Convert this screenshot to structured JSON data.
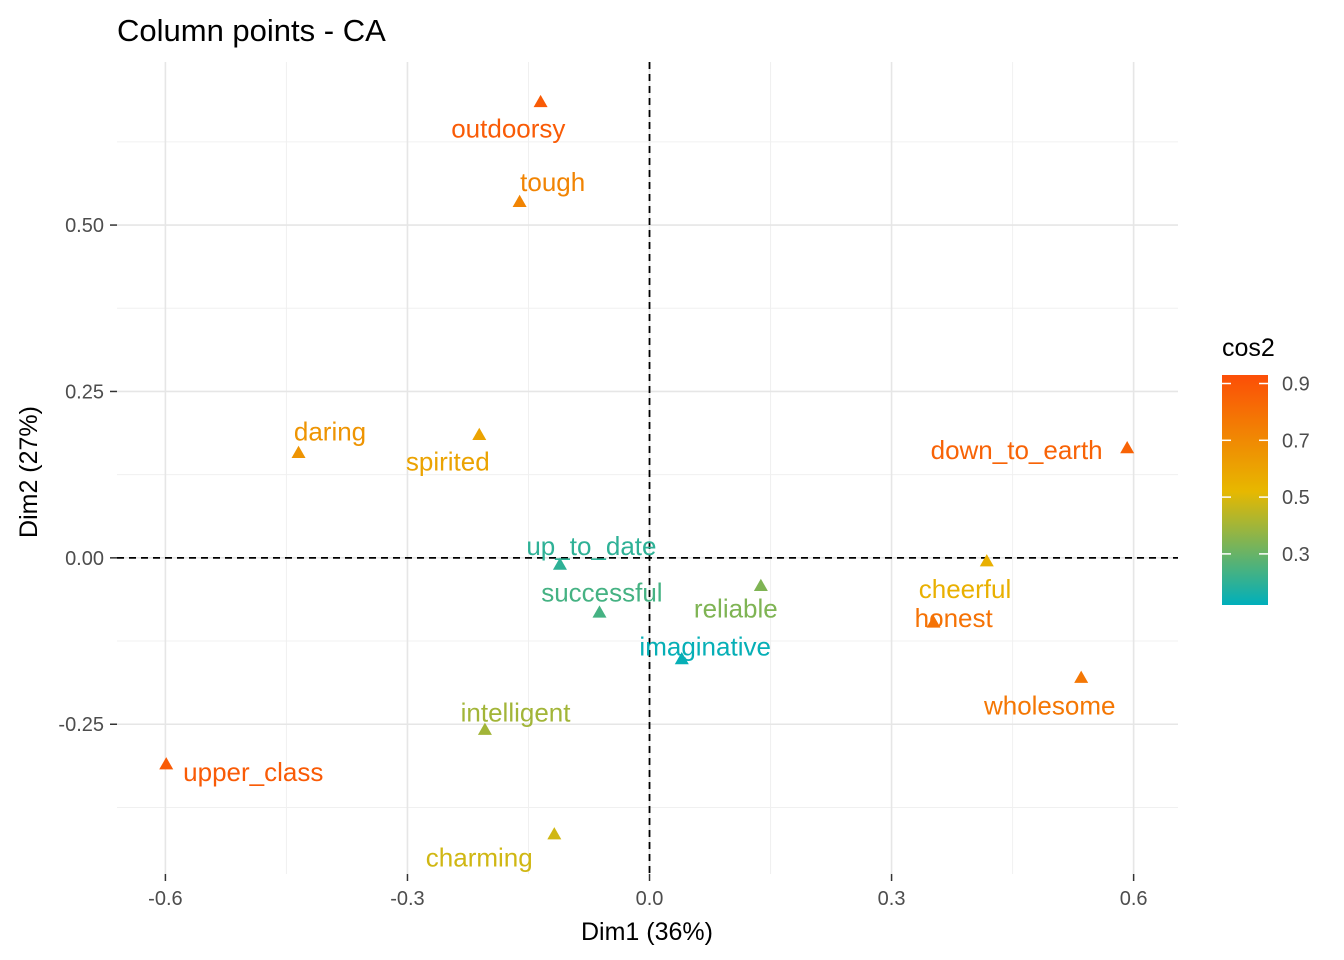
{
  "chart_data": {
    "type": "scatter",
    "title": "Column points - CA",
    "xlabel": "Dim1 (36%)",
    "ylabel": "Dim2 (27%)",
    "xlim": [
      -0.66,
      0.655
    ],
    "ylim": [
      -0.475,
      0.745
    ],
    "x_ticks": [
      -0.6,
      -0.3,
      0.0,
      0.3,
      0.6
    ],
    "x_tick_labels": [
      "-0.6",
      "-0.3",
      "0.0",
      "0.3",
      "0.6"
    ],
    "y_ticks": [
      -0.25,
      0.0,
      0.25,
      0.5
    ],
    "y_tick_labels": [
      "-0.25",
      "0.00",
      "0.25",
      "0.50"
    ],
    "grid": true,
    "reference_lines": {
      "x": 0,
      "y": 0,
      "style": "dashed"
    },
    "marker": "triangle",
    "legend": {
      "title": "cos2",
      "position": "right",
      "ticks": [
        0.9,
        0.7,
        0.5,
        0.3
      ],
      "tick_labels": [
        "0.9",
        "0.7",
        "0.5",
        "0.3"
      ],
      "range": [
        0.12,
        0.93
      ],
      "gradient_stops": [
        {
          "value": 0.12,
          "color": "#00AFBB"
        },
        {
          "value": 0.52,
          "color": "#E7B800"
        },
        {
          "value": 0.93,
          "color": "#FC4E07"
        }
      ]
    },
    "points": [
      {
        "label": "outdoorsy",
        "x": -0.135,
        "y": 0.685,
        "cos2": 0.88,
        "label_x": -0.175,
        "label_y": 0.645,
        "anchor": "middle"
      },
      {
        "label": "tough",
        "x": -0.161,
        "y": 0.535,
        "cos2": 0.72,
        "label_x": -0.12,
        "label_y": 0.565,
        "anchor": "middle"
      },
      {
        "label": "daring",
        "x": -0.435,
        "y": 0.158,
        "cos2": 0.66,
        "label_x": -0.396,
        "label_y": 0.19,
        "anchor": "middle"
      },
      {
        "label": "spirited",
        "x": -0.211,
        "y": 0.185,
        "cos2": 0.6,
        "label_x": -0.25,
        "label_y": 0.145,
        "anchor": "middle"
      },
      {
        "label": "down_to_earth",
        "x": 0.592,
        "y": 0.165,
        "cos2": 0.85,
        "label_x": 0.455,
        "label_y": 0.162,
        "anchor": "middle"
      },
      {
        "label": "up_to_date",
        "x": -0.111,
        "y": -0.01,
        "cos2": 0.2,
        "label_x": -0.072,
        "label_y": 0.018,
        "anchor": "middle"
      },
      {
        "label": "successful",
        "x": -0.062,
        "y": -0.082,
        "cos2": 0.24,
        "label_x": -0.059,
        "label_y": -0.052,
        "anchor": "middle"
      },
      {
        "label": "reliable",
        "x": 0.138,
        "y": -0.042,
        "cos2": 0.34,
        "label_x": 0.107,
        "label_y": -0.076,
        "anchor": "middle"
      },
      {
        "label": "imaginative",
        "x": 0.04,
        "y": -0.152,
        "cos2": 0.13,
        "label_x": 0.069,
        "label_y": -0.133,
        "anchor": "middle"
      },
      {
        "label": "cheerful",
        "x": 0.418,
        "y": -0.005,
        "cos2": 0.55,
        "label_x": 0.391,
        "label_y": -0.047,
        "anchor": "middle"
      },
      {
        "label": "honest",
        "x": 0.352,
        "y": -0.097,
        "cos2": 0.79,
        "label_x": 0.377,
        "label_y": -0.09,
        "anchor": "middle"
      },
      {
        "label": "wholesome",
        "x": 0.535,
        "y": -0.18,
        "cos2": 0.77,
        "label_x": 0.496,
        "label_y": -0.222,
        "anchor": "middle"
      },
      {
        "label": "intelligent",
        "x": -0.204,
        "y": -0.258,
        "cos2": 0.4,
        "label_x": -0.166,
        "label_y": -0.232,
        "anchor": "middle"
      },
      {
        "label": "upper_class",
        "x": -0.599,
        "y": -0.31,
        "cos2": 0.88,
        "label_x": -0.578,
        "label_y": -0.322,
        "anchor": "start"
      },
      {
        "label": "charming",
        "x": -0.118,
        "y": -0.415,
        "cos2": 0.48,
        "label_x": -0.211,
        "label_y": -0.45,
        "anchor": "middle"
      }
    ]
  }
}
